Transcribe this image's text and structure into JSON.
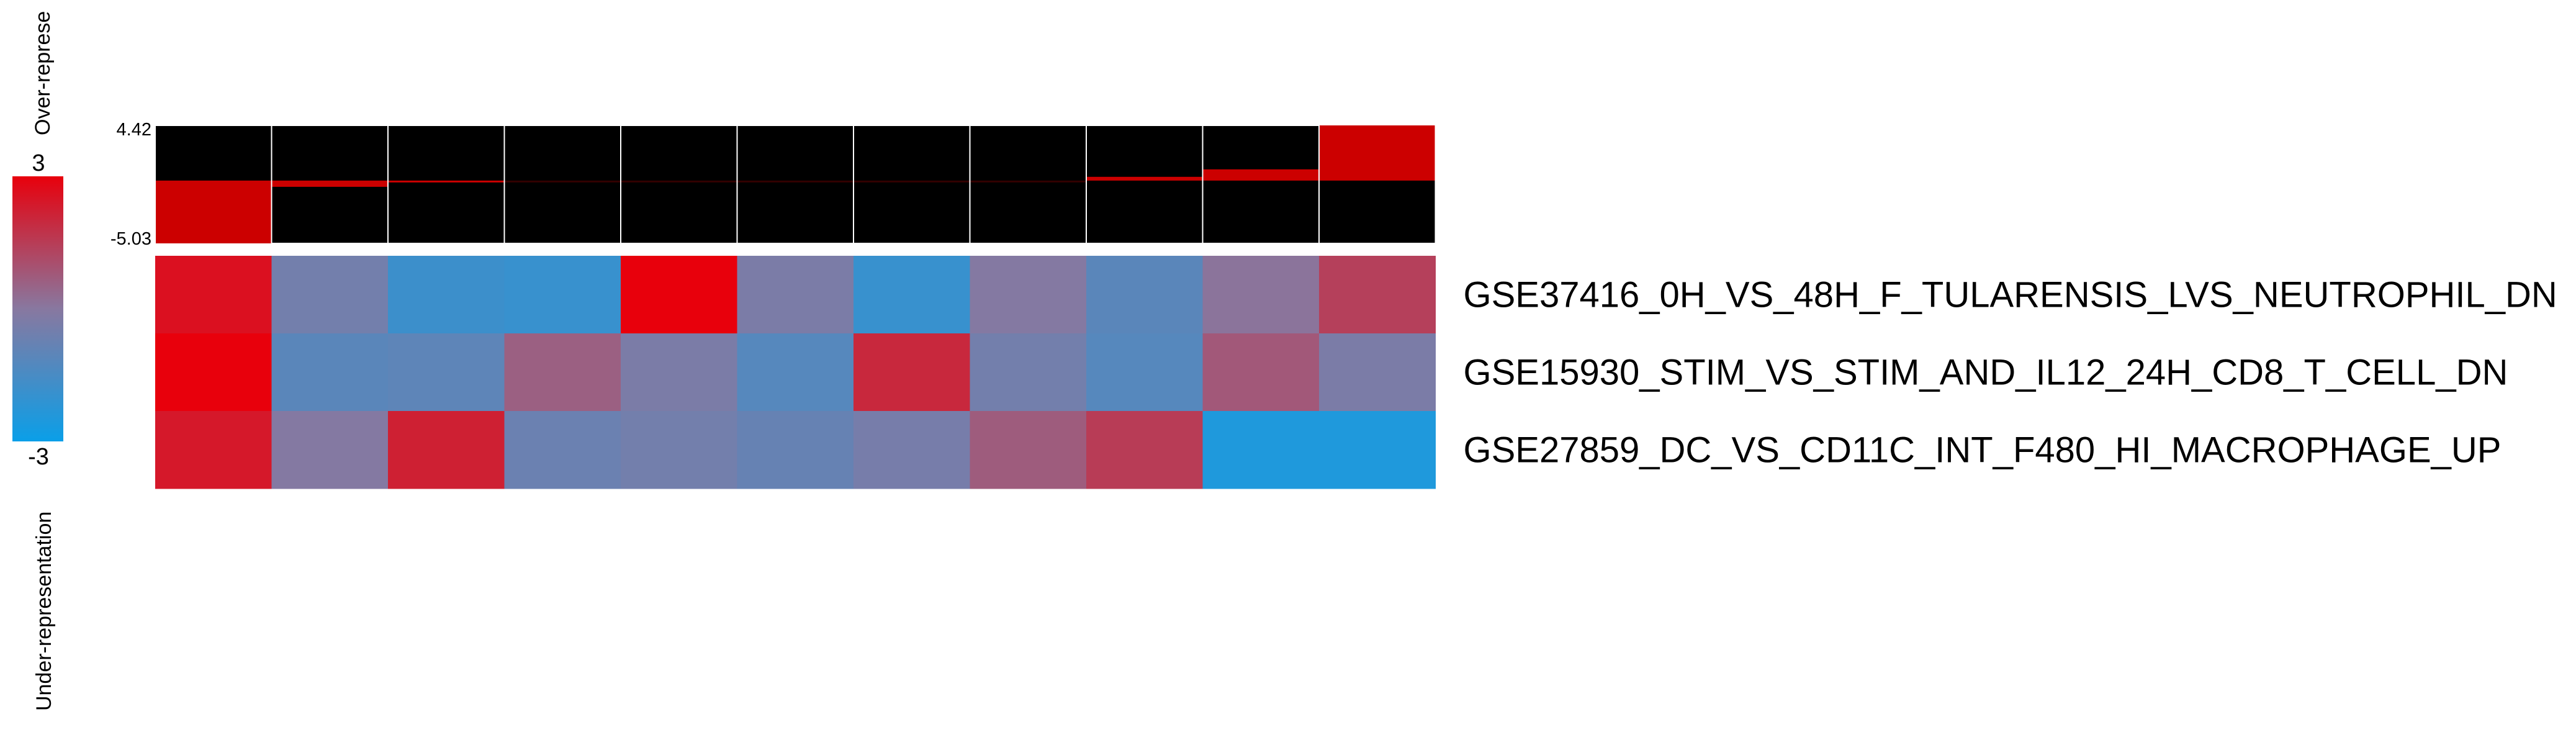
{
  "chart_data": {
    "type": "heatmap",
    "legend": {
      "max_label": "3",
      "min_label": "-3",
      "top_text": "Over-represe",
      "bottom_text": "Under-representation",
      "range": [
        -3,
        3
      ],
      "colors": {
        "high": "#e8000c",
        "mid": "#8878a0",
        "low": "#0a9fe8"
      }
    },
    "bar_panel": {
      "max_label": "4.42",
      "min_label": "-5.03",
      "range": [
        -5.03,
        4.42
      ],
      "values": [
        -5.03,
        -0.5,
        -0.15,
        0.0,
        0.0,
        0.0,
        0.0,
        0.0,
        0.3,
        0.9,
        4.42
      ],
      "bar_color": "#cc0000",
      "background": "#000000"
    },
    "row_labels": [
      "GSE37416_0H_VS_48H_F_TULARENSIS_LVS_NEUTROPHIL_DN",
      "GSE15930_STIM_VS_STIM_AND_IL12_24H_CD8_T_CELL_DN",
      "GSE27859_DC_VS_CD11C_INT_F480_HI_MACROPHAGE_UP"
    ],
    "matrix": [
      [
        2.6,
        -0.5,
        -1.8,
        -1.9,
        3.0,
        -0.3,
        -1.9,
        -0.1,
        -1.1,
        0.1,
        1.4
      ],
      [
        3.0,
        -1.1,
        -1.0,
        0.6,
        -0.3,
        -1.2,
        2.0,
        -0.5,
        -1.2,
        0.8,
        -0.3
      ],
      [
        2.4,
        -0.1,
        2.2,
        -0.7,
        -0.5,
        -0.8,
        -0.4,
        0.7,
        1.5,
        -2.5,
        -2.5
      ]
    ]
  }
}
